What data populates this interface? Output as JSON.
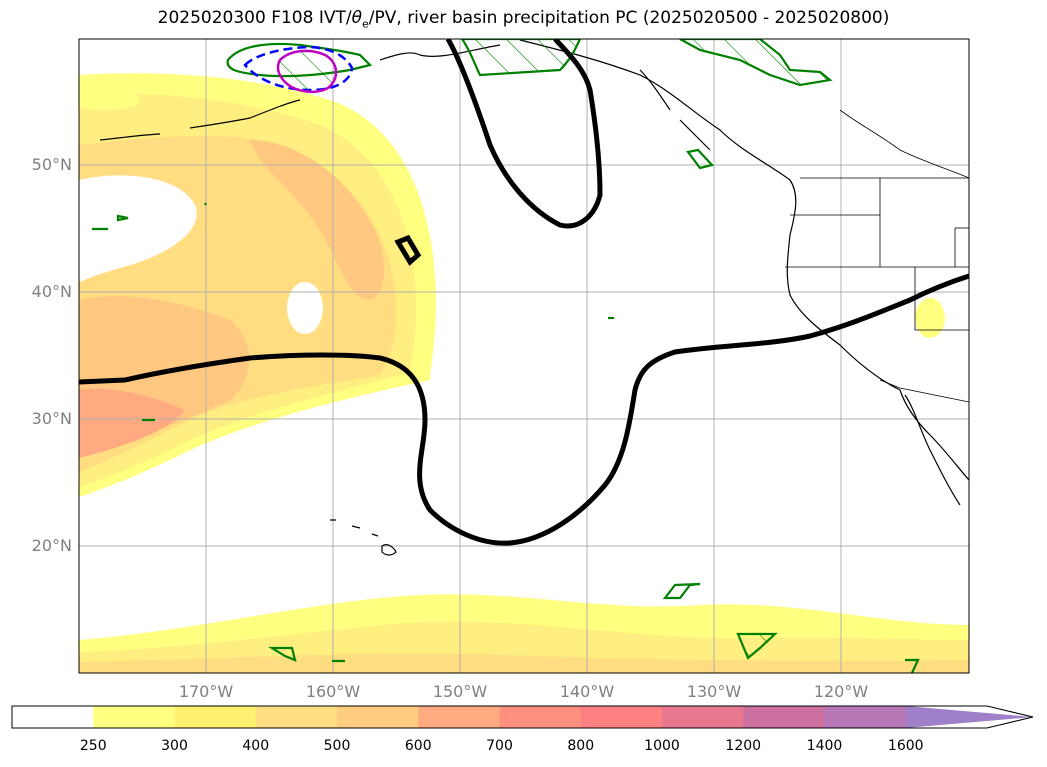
{
  "title": "2025020300 F108 IVT/θe/PV, river basin precipitation PC (2025020500 - 2025020800)",
  "title_parts": {
    "prefix": "2025020300 F108 IVT/",
    "theta": "θ",
    "theta_sub": "e",
    "suffix": "/PV, river basin precipitation PC (2025020500 - 2025020800)"
  },
  "lat_labels": [
    "50°N",
    "40°N",
    "30°N",
    "20°N"
  ],
  "lon_labels": [
    "170°W",
    "160°W",
    "150°W",
    "140°W",
    "130°W",
    "120°W"
  ],
  "colorbar": {
    "ticks": [
      "250",
      "300",
      "400",
      "500",
      "600",
      "700",
      "800",
      "1000",
      "1200",
      "1400",
      "1600"
    ],
    "colors": [
      "#ffffff",
      "#ffff80",
      "#fff070",
      "#ffdd80",
      "#ffcc80",
      "#ffaa80",
      "#ff9080",
      "#ff8080",
      "#e87890",
      "#cc70a0",
      "#b878b8",
      "#a080c8"
    ],
    "extend": "max"
  },
  "map": {
    "projection": "PlateCarree",
    "lon_range": [
      -180,
      -110
    ],
    "lat_range": [
      10,
      60
    ],
    "grid": true,
    "ivt_shading_colors": [
      "#ffff80",
      "#ffee80",
      "#ffdd80",
      "#ffc880",
      "#ffaa80"
    ],
    "pv_contour_color": "#000000",
    "precip_contour_color": "#008000",
    "theta_contour_colors": [
      "#0000ff",
      "#c000c0"
    ]
  }
}
